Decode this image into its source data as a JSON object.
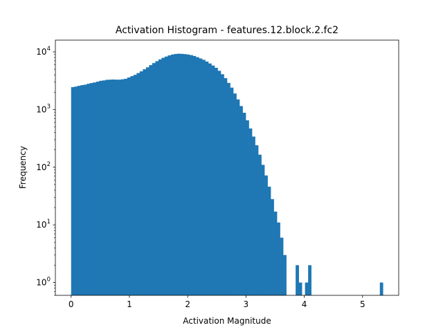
{
  "chart_data": {
    "type": "bar",
    "title": "Activation Histogram - features.12.block.2.fc2",
    "xlabel": "Activation Magnitude",
    "ylabel": "Frequency",
    "yscale": "log",
    "xlim": [
      -0.27,
      5.62
    ],
    "ylim": [
      0.6,
      16000
    ],
    "bar_color": "#1f77b4",
    "grid": false,
    "legend": "none",
    "xticks": [
      {
        "value": 0,
        "label": "0"
      },
      {
        "value": 1,
        "label": "1"
      },
      {
        "value": 2,
        "label": "2"
      },
      {
        "value": 3,
        "label": "3"
      },
      {
        "value": 4,
        "label": "4"
      },
      {
        "value": 5,
        "label": "5"
      }
    ],
    "yticks": [
      {
        "value": 1,
        "base": "10",
        "exp": "0"
      },
      {
        "value": 10,
        "base": "10",
        "exp": "1"
      },
      {
        "value": 100,
        "base": "10",
        "exp": "2"
      },
      {
        "value": 1000,
        "base": "10",
        "exp": "3"
      },
      {
        "value": 10000,
        "base": "10",
        "exp": "4"
      }
    ],
    "bin_start": 0.0,
    "bin_width": 0.0535,
    "values": [
      2450,
      2500,
      2580,
      2650,
      2700,
      2800,
      2880,
      2950,
      3050,
      3150,
      3200,
      3280,
      3300,
      3320,
      3300,
      3300,
      3350,
      3420,
      3600,
      3800,
      4000,
      4300,
      4600,
      5000,
      5400,
      5900,
      6400,
      6900,
      7400,
      7900,
      8300,
      8700,
      9000,
      9200,
      9300,
      9250,
      9150,
      9000,
      8800,
      8500,
      8100,
      7700,
      7300,
      6800,
      6300,
      5800,
      5300,
      4700,
      4100,
      3500,
      2900,
      2400,
      1900,
      1500,
      1150,
      880,
      650,
      470,
      340,
      240,
      165,
      110,
      72,
      46,
      28,
      17,
      11,
      6,
      3,
      0,
      0,
      0,
      2,
      1,
      0,
      1,
      2,
      0,
      0,
      0,
      0,
      0,
      0,
      0,
      0,
      0,
      0,
      0,
      0,
      0,
      0,
      0,
      0,
      0,
      0,
      0,
      0,
      0,
      0,
      1
    ]
  }
}
